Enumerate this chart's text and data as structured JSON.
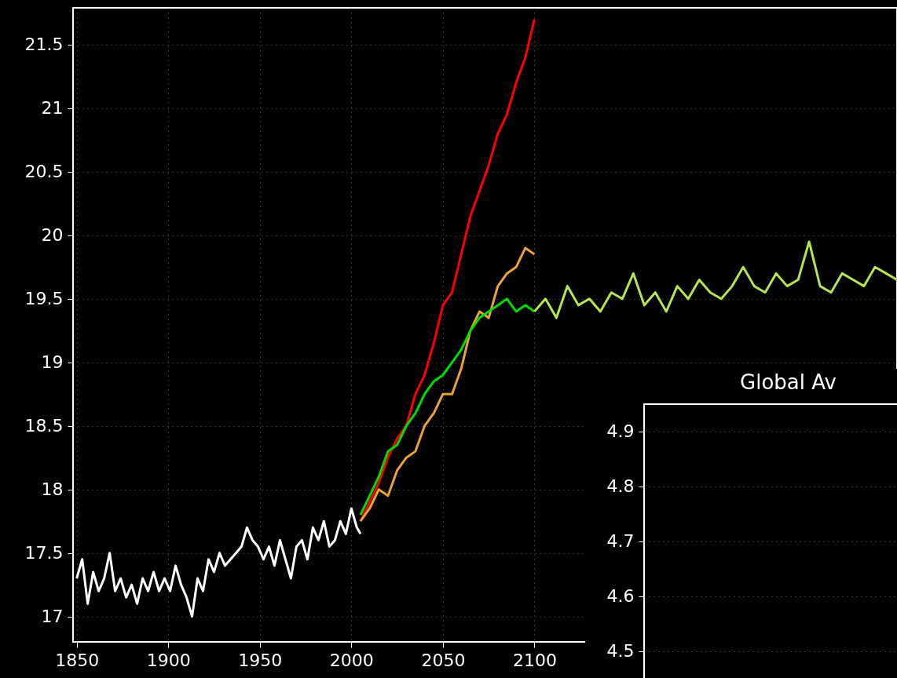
{
  "chart_data": [
    {
      "type": "line",
      "xlim": [
        1848,
        2298
      ],
      "xticks": [
        1850,
        1900,
        1950,
        2000,
        2050,
        2100
      ],
      "ylim": [
        16.8,
        21.79
      ],
      "yticks": [
        17,
        17.5,
        18,
        18.5,
        19,
        19.5,
        20,
        20.5,
        21,
        21.5
      ],
      "grid": true,
      "line_style": "solid",
      "series": [
        {
          "color": "#ffffff",
          "x": [
            1850,
            1853,
            1856,
            1859,
            1862,
            1865,
            1868,
            1871,
            1874,
            1877,
            1880,
            1883,
            1886,
            1889,
            1892,
            1895,
            1898,
            1901,
            1904,
            1907,
            1910,
            1913,
            1916,
            1919,
            1922,
            1925,
            1928,
            1931,
            1934,
            1937,
            1940,
            1943,
            1946,
            1949,
            1952,
            1955,
            1958,
            1961,
            1964,
            1967,
            1970,
            1973,
            1976,
            1979,
            1982,
            1985,
            1988,
            1991,
            1994,
            1997,
            2000,
            2003,
            2005
          ],
          "values": [
            17.3,
            17.45,
            17.1,
            17.35,
            17.2,
            17.3,
            17.5,
            17.2,
            17.3,
            17.15,
            17.25,
            17.1,
            17.3,
            17.2,
            17.35,
            17.2,
            17.3,
            17.2,
            17.4,
            17.25,
            17.15,
            17.0,
            17.3,
            17.2,
            17.45,
            17.35,
            17.5,
            17.4,
            17.45,
            17.5,
            17.55,
            17.7,
            17.6,
            17.55,
            17.45,
            17.55,
            17.4,
            17.6,
            17.45,
            17.3,
            17.55,
            17.6,
            17.45,
            17.7,
            17.6,
            17.75,
            17.55,
            17.6,
            17.75,
            17.65,
            17.85,
            17.7,
            17.65
          ]
        },
        {
          "color": "#ff0000",
          "x": [
            2005,
            2010,
            2015,
            2020,
            2025,
            2030,
            2035,
            2040,
            2045,
            2050,
            2055,
            2060,
            2065,
            2070,
            2075,
            2080,
            2085,
            2090,
            2095,
            2100
          ],
          "values": [
            17.75,
            17.9,
            18.05,
            18.25,
            18.4,
            18.5,
            18.75,
            18.9,
            19.15,
            19.45,
            19.55,
            19.85,
            20.15,
            20.35,
            20.55,
            20.8,
            20.95,
            21.2,
            21.4,
            21.7
          ]
        },
        {
          "color": "#e8a33a",
          "x": [
            2005,
            2010,
            2015,
            2020,
            2025,
            2030,
            2035,
            2040,
            2045,
            2050,
            2055,
            2060,
            2065,
            2070,
            2075,
            2080,
            2085,
            2090,
            2095,
            2100
          ],
          "values": [
            17.75,
            17.85,
            18.0,
            17.95,
            18.15,
            18.25,
            18.3,
            18.5,
            18.6,
            18.75,
            18.75,
            18.95,
            19.25,
            19.4,
            19.35,
            19.6,
            19.7,
            19.75,
            19.9,
            19.85
          ]
        },
        {
          "color": "#00dd00",
          "x": [
            2005,
            2010,
            2015,
            2020,
            2025,
            2030,
            2035,
            2040,
            2045,
            2050,
            2055,
            2060,
            2065,
            2070,
            2075,
            2080,
            2085,
            2090,
            2095,
            2100
          ],
          "values": [
            17.8,
            17.95,
            18.1,
            18.3,
            18.35,
            18.5,
            18.6,
            18.75,
            18.85,
            18.9,
            19.0,
            19.1,
            19.25,
            19.35,
            19.4,
            19.45,
            19.5,
            19.4,
            19.45,
            19.4
          ]
        },
        {
          "color": "#b5e550",
          "x": [
            2100,
            2106,
            2112,
            2118,
            2124,
            2130,
            2136,
            2142,
            2148,
            2154,
            2160,
            2166,
            2172,
            2178,
            2184,
            2190,
            2196,
            2202,
            2208,
            2214,
            2220,
            2226,
            2232,
            2238,
            2244,
            2250,
            2256,
            2262,
            2268,
            2274,
            2280,
            2286,
            2292,
            2298
          ],
          "values": [
            19.4,
            19.5,
            19.35,
            19.6,
            19.45,
            19.5,
            19.4,
            19.55,
            19.5,
            19.7,
            19.45,
            19.55,
            19.4,
            19.6,
            19.5,
            19.65,
            19.55,
            19.5,
            19.6,
            19.75,
            19.6,
            19.55,
            19.7,
            19.6,
            19.65,
            19.95,
            19.6,
            19.55,
            19.7,
            19.65,
            19.6,
            19.75,
            19.7,
            19.65
          ]
        }
      ]
    },
    {
      "type": "line",
      "title": "Global Av",
      "categories": [
        null,
        null
      ],
      "values": [
        null,
        null
      ],
      "ylim": [
        4.435,
        4.95
      ],
      "yticks": [
        4.5,
        4.6,
        4.7,
        4.8,
        4.9
      ],
      "grid": "y"
    }
  ]
}
